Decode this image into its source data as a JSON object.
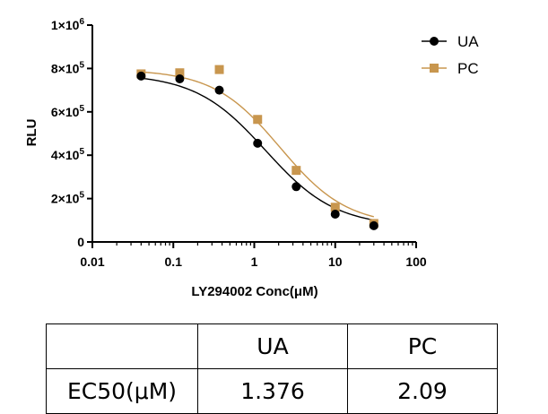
{
  "chart_data": {
    "type": "scatter",
    "title": "",
    "xlabel": "LY294002 Conc(μM)",
    "ylabel": "RLU",
    "xscale": "log",
    "xlim": [
      0.01,
      100
    ],
    "ylim": [
      0,
      1000000
    ],
    "x_ticks": [
      0.01,
      0.1,
      1,
      10,
      100
    ],
    "x_tick_labels": [
      "0.01",
      "0.1",
      "1",
      "10",
      "100"
    ],
    "y_ticks": [
      0,
      200000,
      400000,
      600000,
      800000,
      1000000
    ],
    "y_tick_labels": [
      {
        "mantissa": "0",
        "exponent": ""
      },
      {
        "mantissa": "2×10",
        "exponent": "5"
      },
      {
        "mantissa": "4×10",
        "exponent": "5"
      },
      {
        "mantissa": "6×10",
        "exponent": "5"
      },
      {
        "mantissa": "8×10",
        "exponent": "5"
      },
      {
        "mantissa": "1×10",
        "exponent": "6"
      }
    ],
    "grid": false,
    "legend_position": "top-right",
    "series": [
      {
        "name": "UA",
        "marker": "circle",
        "color": "#000000",
        "x": [
          0.04,
          0.12,
          0.37,
          1.1,
          3.3,
          10,
          30
        ],
        "y": [
          765000,
          752000,
          700000,
          455000,
          255000,
          128000,
          75000
        ],
        "fit": {
          "top": 775000,
          "bottom": 70000,
          "ec50": 1.376,
          "hill": 1.0
        }
      },
      {
        "name": "PC",
        "marker": "square",
        "color": "#C8964E",
        "x": [
          0.04,
          0.12,
          0.37,
          1.1,
          3.3,
          10,
          30
        ],
        "y": [
          775000,
          780000,
          795000,
          565000,
          330000,
          160000,
          85000
        ],
        "fit": {
          "top": 795000,
          "bottom": 75000,
          "ec50": 2.09,
          "hill": 1.05
        }
      }
    ]
  },
  "table": {
    "header": [
      "",
      "UA",
      "PC"
    ],
    "rows": [
      [
        "EC50(μM)",
        "1.376",
        "2.09"
      ]
    ]
  }
}
